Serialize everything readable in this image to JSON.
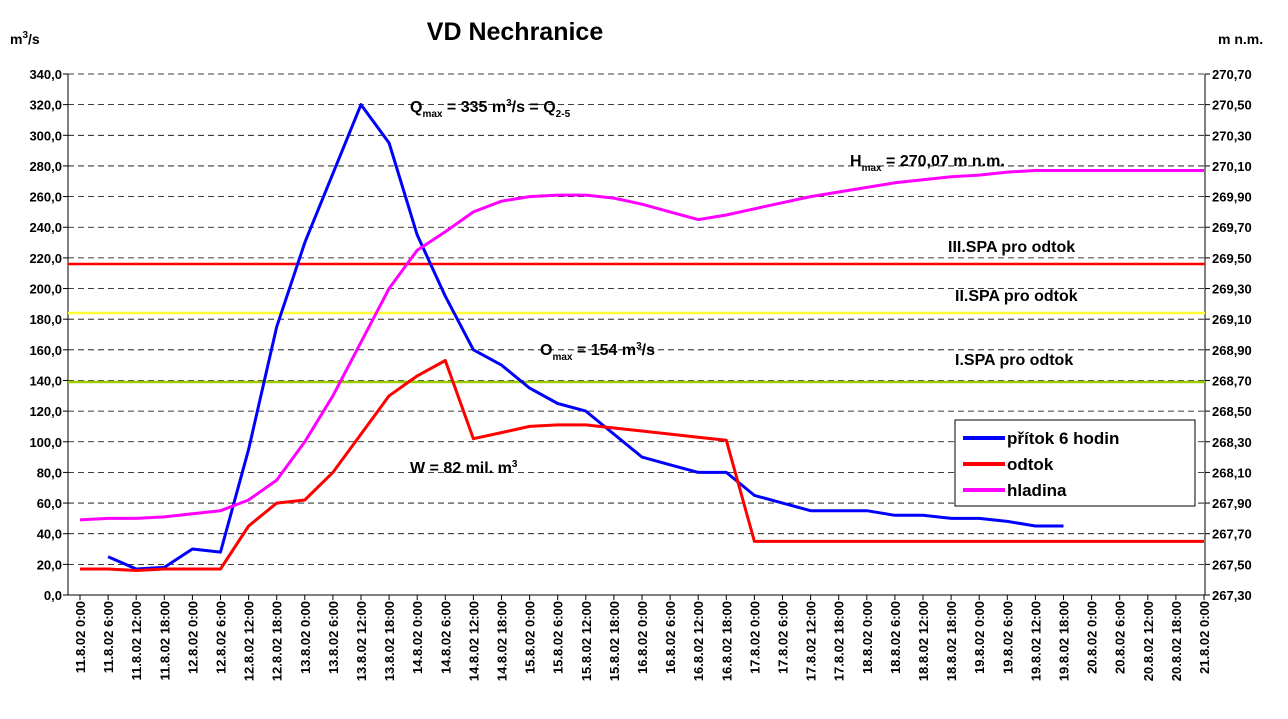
{
  "chart_data": {
    "type": "line",
    "title": "VD Nechranice",
    "y_label": [
      {
        "t": "m"
      },
      {
        "sup": "3"
      },
      {
        "t": "/s"
      }
    ],
    "y2_label": "m n.m.",
    "categories": [
      "11.8.02 0:00",
      "11.8.02 6:00",
      "11.8.02 12:00",
      "11.8.02 18:00",
      "12.8.02 0:00",
      "12.8.02 6:00",
      "12.8.02 12:00",
      "12.8.02 18:00",
      "13.8.02 0:00",
      "13.8.02 6:00",
      "13.8.02 12:00",
      "13.8.02 18:00",
      "14.8.02 0:00",
      "14.8.02 6:00",
      "14.8.02 12:00",
      "14.8.02 18:00",
      "15.8.02 0:00",
      "15.8.02 6:00",
      "15.8.02 12:00",
      "15.8.02 18:00",
      "16.8.02 0:00",
      "16.8.02 6:00",
      "16.8.02 12:00",
      "16.8.02 18:00",
      "17.8.02 0:00",
      "17.8.02 6:00",
      "17.8.02 12:00",
      "17.8.02 18:00",
      "18.8.02 0:00",
      "18.8.02 6:00",
      "18.8.02 12:00",
      "18.8.02 18:00",
      "19.8.02 0:00",
      "19.8.02 6:00",
      "19.8.02 12:00",
      "19.8.02 18:00",
      "20.8.02 0:00",
      "20.8.02 6:00",
      "20.8.02 12:00",
      "20.8.02 18:00",
      "21.8.02 0:00"
    ],
    "series": [
      {
        "name": "přítok 6 hodin",
        "color": "#0000ff",
        "values": [
          null,
          25,
          17,
          18,
          30,
          28,
          95,
          175,
          230,
          275,
          320,
          295,
          235,
          195,
          160,
          150,
          135,
          125,
          120,
          105,
          90,
          85,
          80,
          80,
          65,
          60,
          55,
          55,
          55,
          52,
          52,
          50,
          50,
          48,
          45,
          45,
          null,
          null,
          null,
          null,
          null
        ]
      },
      {
        "name": "odtok",
        "color": "#ff0000",
        "values": [
          17,
          17,
          16,
          17,
          17,
          17,
          45,
          60,
          62,
          80,
          105,
          130,
          143,
          153,
          102,
          106,
          110,
          111,
          111,
          109,
          107,
          105,
          103,
          101,
          35,
          35,
          35,
          35,
          35,
          35,
          35,
          35,
          35,
          35,
          35,
          35,
          35,
          35,
          35,
          35,
          35
        ]
      },
      {
        "name": "hladina",
        "color": "#ff00ff",
        "axis": "y2",
        "values": [
          267.79,
          267.8,
          267.8,
          267.81,
          267.83,
          267.85,
          267.92,
          268.05,
          268.3,
          268.6,
          268.95,
          269.3,
          269.55,
          269.67,
          269.8,
          269.87,
          269.9,
          269.91,
          269.91,
          269.89,
          269.85,
          269.8,
          269.75,
          269.78,
          269.82,
          269.86,
          269.9,
          269.93,
          269.96,
          269.99,
          270.01,
          270.03,
          270.04,
          270.06,
          270.07,
          270.07,
          270.07,
          270.07,
          270.07,
          270.07,
          270.07
        ]
      }
    ],
    "ylim": [
      0,
      340
    ],
    "yticks": [
      {
        "value": 0,
        "label": "0,0"
      },
      {
        "value": 20,
        "label": "20,0"
      },
      {
        "value": 40,
        "label": "40,0"
      },
      {
        "value": 60,
        "label": "60,0"
      },
      {
        "value": 80,
        "label": "80,0"
      },
      {
        "value": 100,
        "label": "100,0"
      },
      {
        "value": 120,
        "label": "120,0"
      },
      {
        "value": 140,
        "label": "140,0"
      },
      {
        "value": 160,
        "label": "160,0"
      },
      {
        "value": 180,
        "label": "180,0"
      },
      {
        "value": 200,
        "label": "200,0"
      },
      {
        "value": 220,
        "label": "220,0"
      },
      {
        "value": 240,
        "label": "240,0"
      },
      {
        "value": 260,
        "label": "260,0"
      },
      {
        "value": 280,
        "label": "280,0"
      },
      {
        "value": 300,
        "label": "300,0"
      },
      {
        "value": 320,
        "label": "320,0"
      },
      {
        "value": 340,
        "label": "340,0"
      }
    ],
    "y2lim": [
      267.3,
      270.7
    ],
    "y2ticks": [
      {
        "value": 267.3,
        "label": "267,30"
      },
      {
        "value": 267.5,
        "label": "267,50"
      },
      {
        "value": 267.7,
        "label": "267,70"
      },
      {
        "value": 267.9,
        "label": "267,90"
      },
      {
        "value": 268.1,
        "label": "268,10"
      },
      {
        "value": 268.3,
        "label": "268,30"
      },
      {
        "value": 268.5,
        "label": "268,50"
      },
      {
        "value": 268.7,
        "label": "268,70"
      },
      {
        "value": 268.9,
        "label": "268,90"
      },
      {
        "value": 269.1,
        "label": "269,10"
      },
      {
        "value": 269.3,
        "label": "269,30"
      },
      {
        "value": 269.5,
        "label": "269,50"
      },
      {
        "value": 269.7,
        "label": "269,70"
      },
      {
        "value": 269.9,
        "label": "269,90"
      },
      {
        "value": 270.1,
        "label": "270,10"
      },
      {
        "value": 270.3,
        "label": "270,30"
      },
      {
        "value": 270.5,
        "label": "270,50"
      },
      {
        "value": 270.7,
        "label": "270,70"
      }
    ],
    "grid": true,
    "reference_lines": [
      {
        "label": "III.SPA pro odtok",
        "value": 216,
        "color": "#ff0000"
      },
      {
        "label": "II.SPA pro odtok",
        "value": 184,
        "color": "#ffff33"
      },
      {
        "label": "I.SPA pro odtok",
        "value": 139,
        "color": "#99cc00"
      }
    ],
    "annotations": [
      [
        {
          "t": "Q"
        },
        {
          "sub": "max"
        },
        {
          "t": " = 335 m"
        },
        {
          "sup": "3"
        },
        {
          "t": "/s = Q"
        },
        {
          "sub": "2-5"
        }
      ],
      [
        {
          "t": "H"
        },
        {
          "sub": "max"
        },
        {
          "t": " = 270,07 m n.m."
        }
      ],
      [
        {
          "t": "O"
        },
        {
          "sub": "max"
        },
        {
          "t": " = 154 m"
        },
        {
          "sup": "3"
        },
        {
          "t": "/s"
        }
      ],
      [
        {
          "t": "W = 82 mil. m"
        },
        {
          "sup": "3"
        }
      ]
    ]
  }
}
